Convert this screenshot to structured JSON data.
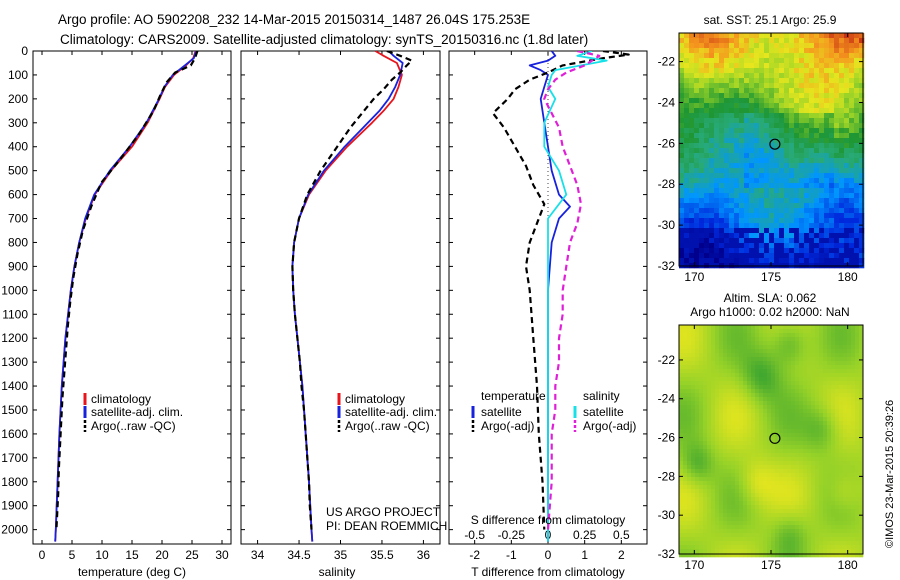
{
  "figure": {
    "title_line1": "Argo profile: AO 5902208_232 14-Mar-2015 20150314_1487 26.04S 175.253E",
    "title_line2": "Climatology: CARS2009. Satellite-adjusted climatology: synTS_20150316.nc (1.8d later)",
    "project_line1": "US ARGO PROJECT",
    "project_line2": "PI: DEAN ROEMMICH",
    "credit": "©IMOS 23-Mar-2015 20:39:26"
  },
  "colors": {
    "climatology": "#e8141c",
    "satellite": "#1822dc",
    "argo": "#000000",
    "sat_salinity": "#18e0e8",
    "argo_salinity": "#e020d8"
  },
  "chart_data": [
    {
      "type": "line",
      "name": "temperature-profile",
      "xlabel": "temperature (deg C)",
      "xlim": [
        -1.5,
        31.5
      ],
      "xticks": [
        0,
        5,
        10,
        15,
        20,
        25,
        30
      ],
      "xtick_labels": [
        "0",
        "5",
        "10",
        "15",
        "20",
        "25",
        "30"
      ],
      "ylim": [
        0,
        2060
      ],
      "yticks": [
        0,
        100,
        200,
        300,
        400,
        500,
        600,
        700,
        800,
        900,
        1000,
        1100,
        1200,
        1300,
        1400,
        1500,
        1600,
        1700,
        1800,
        1900,
        2000
      ],
      "ytick_labels": [
        "0",
        "100",
        "200",
        "300",
        "400",
        "500",
        "600",
        "700",
        "800",
        "900",
        "1000",
        "1100",
        "1200",
        "1300",
        "1400",
        "1500",
        "1600",
        "1700",
        "1800",
        "1900",
        "2000"
      ],
      "legend": [
        "climatology",
        "satellite-adj. clim.",
        "Argo(..raw -QC)"
      ],
      "series": [
        {
          "name": "climatology",
          "style": "solid",
          "color": "#e8141c",
          "depth": [
            0,
            30,
            60,
            100,
            150,
            200,
            300,
            400,
            500,
            600,
            700,
            800,
            900,
            1000,
            1200,
            1400,
            1600,
            1800,
            2000,
            2050
          ],
          "values": [
            25.6,
            25.2,
            24.0,
            22.0,
            20.5,
            19.6,
            17.6,
            15.0,
            11.5,
            8.8,
            7.3,
            6.2,
            5.4,
            4.8,
            3.9,
            3.3,
            2.9,
            2.6,
            2.3,
            2.2
          ]
        },
        {
          "name": "satellite-adj. clim.",
          "style": "solid",
          "color": "#1822dc",
          "depth": [
            0,
            30,
            60,
            100,
            150,
            200,
            300,
            400,
            500,
            600,
            700,
            800,
            900,
            1000,
            1200,
            1400,
            1600,
            1800,
            2000,
            2050
          ],
          "values": [
            25.7,
            25.3,
            23.8,
            21.8,
            20.4,
            19.5,
            17.4,
            14.6,
            11.3,
            8.7,
            7.2,
            6.2,
            5.4,
            4.8,
            3.9,
            3.3,
            2.9,
            2.6,
            2.3,
            2.2
          ]
        },
        {
          "name": "Argo(..raw -QC)",
          "style": "dashed",
          "color": "#000000",
          "depth": [
            0,
            30,
            60,
            90,
            130,
            180,
            250,
            350,
            450,
            550,
            650,
            750,
            850,
            950,
            1050,
            1150,
            1250,
            1350,
            1450,
            1550,
            1650,
            1750,
            1850,
            1950,
            2000
          ],
          "values": [
            25.9,
            25.5,
            24.8,
            22.2,
            20.8,
            19.8,
            18.6,
            16.1,
            13.1,
            9.9,
            8.2,
            6.8,
            5.9,
            5.2,
            4.7,
            4.3,
            4.0,
            3.7,
            3.4,
            3.2,
            3.0,
            2.8,
            2.7,
            2.5,
            2.4
          ]
        }
      ]
    },
    {
      "type": "line",
      "name": "salinity-profile",
      "xlabel": "salinity",
      "xlim": [
        33.8,
        36.2
      ],
      "xticks": [
        34,
        34.5,
        35,
        35.5,
        36
      ],
      "xtick_labels": [
        "34",
        "34.5",
        "35",
        "35.5",
        "36"
      ],
      "ylim": [
        0,
        2060
      ],
      "legend": [
        "climatology",
        "satellite-adj. clim.",
        "Argo(..raw -QC)"
      ],
      "series": [
        {
          "name": "climatology",
          "style": "solid",
          "color": "#e8141c",
          "depth": [
            0,
            20,
            50,
            100,
            150,
            200,
            250,
            300,
            400,
            500,
            600,
            700,
            800,
            900,
            1000,
            1100,
            1200,
            1300,
            1400,
            1600,
            1800,
            2000,
            2050
          ],
          "values": [
            35.42,
            35.52,
            35.68,
            35.74,
            35.7,
            35.64,
            35.52,
            35.38,
            35.08,
            34.82,
            34.62,
            34.5,
            34.44,
            34.42,
            34.43,
            34.45,
            34.48,
            34.51,
            34.54,
            34.58,
            34.62,
            34.65,
            34.66
          ]
        },
        {
          "name": "satellite-adj. clim.",
          "style": "solid",
          "color": "#1822dc",
          "depth": [
            0,
            20,
            50,
            100,
            150,
            200,
            250,
            300,
            400,
            500,
            600,
            700,
            800,
            900,
            1000,
            1100,
            1200,
            1300,
            1400,
            1600,
            1800,
            2000,
            2050
          ],
          "values": [
            35.58,
            35.64,
            35.75,
            35.72,
            35.66,
            35.58,
            35.47,
            35.33,
            35.05,
            34.8,
            34.61,
            34.5,
            34.44,
            34.42,
            34.43,
            34.45,
            34.48,
            34.51,
            34.54,
            34.58,
            34.62,
            34.65,
            34.66
          ]
        },
        {
          "name": "Argo(..raw -QC)",
          "style": "dashed",
          "color": "#000000",
          "depth": [
            0,
            20,
            40,
            60,
            90,
            120,
            160,
            200,
            260,
            320,
            400,
            500,
            600,
            700,
            800,
            900,
            1000,
            1100,
            1200,
            1300,
            1400,
            1500,
            1600,
            1700,
            1800,
            1900,
            2000
          ],
          "values": [
            35.56,
            35.72,
            35.86,
            35.8,
            35.72,
            35.62,
            35.52,
            35.4,
            35.26,
            35.12,
            34.96,
            34.76,
            34.6,
            34.5,
            34.44,
            34.42,
            34.43,
            34.45,
            34.48,
            34.51,
            34.53,
            34.56,
            34.58,
            34.6,
            34.62,
            34.63,
            34.65
          ]
        }
      ]
    },
    {
      "type": "line",
      "name": "difference-profile",
      "xlabel": "T difference from climatology",
      "top_axis_label": "S difference from climatology",
      "xlim": [
        -2.7,
        2.7
      ],
      "xticks": [
        -2,
        -1,
        0,
        1,
        2
      ],
      "xtick_labels": [
        "-2",
        "-1",
        "0",
        "1",
        "2"
      ],
      "top_xticks": [
        -2,
        -1,
        0,
        1,
        2
      ],
      "top_xtick_labels": [
        "-0.5",
        "-0.25",
        "0",
        "0.25",
        "0.5"
      ],
      "ylim": [
        0,
        2060
      ],
      "legend_temperature_header": "temperature",
      "legend_salinity_header": "salinity",
      "legend": [
        "satellite",
        "Argo(-adj)",
        "satellite",
        "Argo(-adj)"
      ],
      "series": [
        {
          "name": "temperature satellite",
          "style": "solid",
          "color": "#1822dc",
          "depth": [
            0,
            20,
            40,
            60,
            80,
            100,
            150,
            200,
            300,
            400,
            500,
            600,
            650,
            700,
            800,
            1000,
            1200,
            1400,
            1600,
            1800,
            2000,
            2050
          ],
          "values": [
            0.1,
            0.2,
            0.0,
            -0.5,
            -0.2,
            0.0,
            -0.1,
            -0.2,
            -0.1,
            0.0,
            0.1,
            0.3,
            0.6,
            0.3,
            0.1,
            0.0,
            0.0,
            0.0,
            0.0,
            0.0,
            0.0,
            0.0
          ]
        },
        {
          "name": "temperature Argo(-adj)",
          "style": "dashed",
          "color": "#000000",
          "depth": [
            0,
            15,
            30,
            60,
            90,
            120,
            160,
            200,
            260,
            320,
            400,
            480,
            560,
            640,
            720,
            800,
            900,
            1000,
            1200,
            1400,
            1600,
            1800,
            2000
          ],
          "values": [
            1.5,
            2.2,
            1.5,
            0.4,
            0.0,
            -0.5,
            -0.9,
            -1.1,
            -1.5,
            -1.2,
            -0.9,
            -0.6,
            -0.4,
            -0.1,
            -0.3,
            -0.5,
            -0.6,
            -0.5,
            -0.4,
            -0.3,
            -0.25,
            -0.15,
            -0.1
          ]
        },
        {
          "name": "salinity satellite",
          "style": "solid",
          "color": "#18e0e8",
          "depth": [
            0,
            20,
            40,
            60,
            80,
            100,
            150,
            200,
            300,
            400,
            500,
            600,
            700,
            800,
            1000,
            1200,
            1400,
            1600,
            1800,
            2000,
            2050
          ],
          "values": [
            1.2,
            0.8,
            1.6,
            0.9,
            0.2,
            0.1,
            0.0,
            0.2,
            -0.1,
            -0.1,
            0.3,
            0.5,
            0.0,
            0.0,
            0.0,
            0.0,
            0.0,
            0.0,
            0.0,
            0.0,
            0.0
          ]
        },
        {
          "name": "salinity Argo(-adj)",
          "style": "dashed",
          "color": "#e020d8",
          "depth": [
            0,
            20,
            40,
            60,
            90,
            120,
            160,
            200,
            260,
            320,
            400,
            480,
            560,
            640,
            720,
            800,
            900,
            1000,
            1100,
            1200,
            1300,
            1400,
            1500,
            1600,
            1800,
            2000
          ],
          "values": [
            0.8,
            1.4,
            1.2,
            1.0,
            0.5,
            0.2,
            0.0,
            -0.1,
            0.1,
            0.3,
            0.4,
            0.6,
            0.8,
            0.9,
            0.8,
            0.6,
            0.5,
            0.4,
            0.4,
            0.3,
            0.3,
            0.2,
            0.2,
            0.1,
            0.1,
            0.0
          ]
        }
      ]
    },
    {
      "type": "heatmap",
      "name": "sst-map",
      "title": "sat. SST: 25.1 Argo: 25.9",
      "xlim": [
        169.0,
        181.0
      ],
      "ylim": [
        -32.0,
        -20.6
      ],
      "xticks": [
        170,
        175,
        180
      ],
      "xtick_labels": [
        "170",
        "175",
        "180"
      ],
      "yticks": [
        -22,
        -24,
        -26,
        -28,
        -30,
        -32
      ],
      "ytick_labels": [
        "-22",
        "-24",
        "-26",
        "-28",
        "-30",
        "-32"
      ],
      "float_position": [
        175.253,
        -26.04
      ],
      "value_range": [
        22.0,
        28.0
      ]
    },
    {
      "type": "heatmap",
      "name": "sla-map",
      "title_line1": "Altim. SLA: 0.062",
      "title_line2": "Argo h1000: 0.02 h2000: NaN",
      "xlim": [
        169.0,
        181.0
      ],
      "ylim": [
        -32.0,
        -20.2
      ],
      "xticks": [
        170,
        175,
        180
      ],
      "xtick_labels": [
        "170",
        "175",
        "180"
      ],
      "yticks": [
        -22,
        -24,
        -26,
        -28,
        -30,
        -32
      ],
      "ytick_labels": [
        "-22",
        "-24",
        "-26",
        "-28",
        "-30",
        "-32"
      ],
      "float_position": [
        175.253,
        -26.04
      ]
    }
  ]
}
